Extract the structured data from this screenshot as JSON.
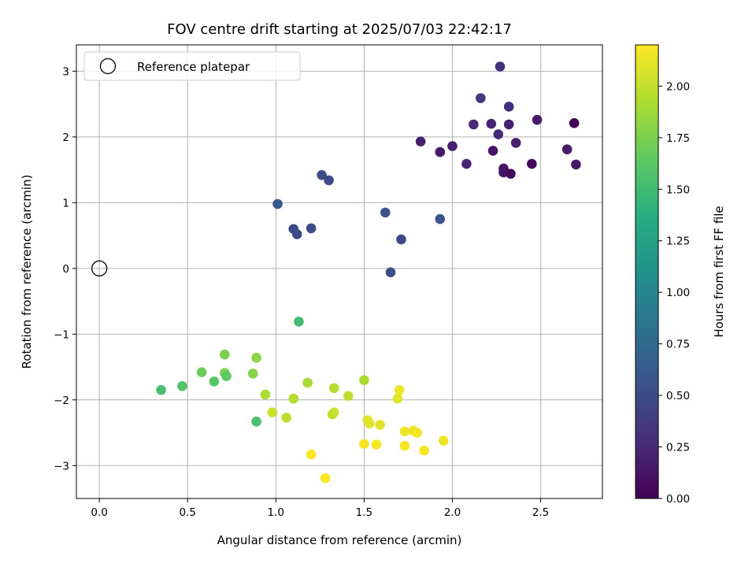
{
  "chart_data": {
    "type": "scatter",
    "title": "FOV centre drift starting at 2025/07/03 22:42:17",
    "xlabel": "Angular distance from reference (arcmin)",
    "ylabel": "Rotation from reference (arcmin)",
    "xlim": [
      -0.13,
      2.85
    ],
    "ylim": [
      -3.5,
      3.4
    ],
    "xticks": [
      0.0,
      0.5,
      1.0,
      1.5,
      2.0,
      2.5
    ],
    "xtick_labels": [
      "0.0",
      "0.5",
      "1.0",
      "1.5",
      "2.0",
      "2.5"
    ],
    "yticks": [
      -3,
      -2,
      -1,
      0,
      1,
      2,
      3
    ],
    "ytick_labels": [
      "−3",
      "−2",
      "−1",
      "0",
      "1",
      "2",
      "3"
    ],
    "grid": true,
    "legend": {
      "position": "top-left",
      "entries": [
        {
          "label": "Reference platepar",
          "marker": "open-circle"
        }
      ]
    },
    "reference_point": {
      "x": 0.0,
      "y": 0.0
    },
    "colorbar": {
      "label": "Hours from first FF file",
      "colormap": "viridis",
      "range": [
        0.0,
        2.2
      ],
      "ticks": [
        0.0,
        0.25,
        0.5,
        0.75,
        1.0,
        1.25,
        1.5,
        1.75,
        2.0
      ],
      "tick_labels": [
        "0.00",
        "0.25",
        "0.50",
        "0.75",
        "1.00",
        "1.25",
        "1.50",
        "1.75",
        "2.00"
      ]
    },
    "points": [
      {
        "x": 2.27,
        "y": 3.07,
        "c": 0.28
      },
      {
        "x": 2.16,
        "y": 2.59,
        "c": 0.35
      },
      {
        "x": 2.32,
        "y": 2.46,
        "c": 0.28
      },
      {
        "x": 2.48,
        "y": 2.26,
        "c": 0.15
      },
      {
        "x": 2.69,
        "y": 2.21,
        "c": 0.02
      },
      {
        "x": 2.12,
        "y": 2.19,
        "c": 0.25
      },
      {
        "x": 2.22,
        "y": 2.2,
        "c": 0.22
      },
      {
        "x": 2.32,
        "y": 2.19,
        "c": 0.2
      },
      {
        "x": 2.26,
        "y": 2.04,
        "c": 0.25
      },
      {
        "x": 1.82,
        "y": 1.93,
        "c": 0.2
      },
      {
        "x": 2.36,
        "y": 1.91,
        "c": 0.18
      },
      {
        "x": 2.0,
        "y": 1.86,
        "c": 0.18
      },
      {
        "x": 2.65,
        "y": 1.81,
        "c": 0.15
      },
      {
        "x": 1.93,
        "y": 1.77,
        "c": 0.15
      },
      {
        "x": 2.23,
        "y": 1.79,
        "c": 0.12
      },
      {
        "x": 2.08,
        "y": 1.59,
        "c": 0.22
      },
      {
        "x": 2.45,
        "y": 1.59,
        "c": 0.05
      },
      {
        "x": 2.7,
        "y": 1.58,
        "c": 0.15
      },
      {
        "x": 2.29,
        "y": 1.52,
        "c": 0.12
      },
      {
        "x": 2.29,
        "y": 1.46,
        "c": 0.12
      },
      {
        "x": 2.33,
        "y": 1.44,
        "c": 0.05
      },
      {
        "x": 1.26,
        "y": 1.42,
        "c": 0.5
      },
      {
        "x": 1.3,
        "y": 1.34,
        "c": 0.48
      },
      {
        "x": 1.01,
        "y": 0.98,
        "c": 0.62
      },
      {
        "x": 1.62,
        "y": 0.85,
        "c": 0.55
      },
      {
        "x": 1.93,
        "y": 0.75,
        "c": 0.55
      },
      {
        "x": 1.1,
        "y": 0.6,
        "c": 0.5
      },
      {
        "x": 1.2,
        "y": 0.61,
        "c": 0.5
      },
      {
        "x": 1.12,
        "y": 0.52,
        "c": 0.5
      },
      {
        "x": 1.71,
        "y": 0.44,
        "c": 0.48
      },
      {
        "x": 1.65,
        "y": -0.06,
        "c": 0.52
      },
      {
        "x": 1.13,
        "y": -0.81,
        "c": 1.52
      },
      {
        "x": 0.71,
        "y": -1.31,
        "c": 1.75
      },
      {
        "x": 0.89,
        "y": -1.36,
        "c": 1.8
      },
      {
        "x": 0.58,
        "y": -1.58,
        "c": 1.7
      },
      {
        "x": 0.71,
        "y": -1.59,
        "c": 1.75
      },
      {
        "x": 0.87,
        "y": -1.6,
        "c": 1.78
      },
      {
        "x": 0.72,
        "y": -1.64,
        "c": 1.65
      },
      {
        "x": 0.65,
        "y": -1.72,
        "c": 1.6
      },
      {
        "x": 1.5,
        "y": -1.7,
        "c": 1.92
      },
      {
        "x": 1.18,
        "y": -1.74,
        "c": 1.9
      },
      {
        "x": 0.47,
        "y": -1.79,
        "c": 1.58
      },
      {
        "x": 1.33,
        "y": -1.82,
        "c": 1.95
      },
      {
        "x": 0.35,
        "y": -1.85,
        "c": 1.55
      },
      {
        "x": 1.7,
        "y": -1.85,
        "c": 2.15
      },
      {
        "x": 0.94,
        "y": -1.92,
        "c": 1.92
      },
      {
        "x": 1.41,
        "y": -1.94,
        "c": 1.98
      },
      {
        "x": 1.1,
        "y": -1.98,
        "c": 1.95
      },
      {
        "x": 1.69,
        "y": -1.98,
        "c": 2.1
      },
      {
        "x": 0.98,
        "y": -2.19,
        "c": 2.02
      },
      {
        "x": 1.33,
        "y": -2.19,
        "c": 2.05
      },
      {
        "x": 1.32,
        "y": -2.22,
        "c": 2.0
      },
      {
        "x": 1.06,
        "y": -2.27,
        "c": 1.98
      },
      {
        "x": 1.52,
        "y": -2.31,
        "c": 2.1
      },
      {
        "x": 0.89,
        "y": -2.33,
        "c": 1.55
      },
      {
        "x": 1.53,
        "y": -2.36,
        "c": 2.1
      },
      {
        "x": 1.59,
        "y": -2.38,
        "c": 2.1
      },
      {
        "x": 1.73,
        "y": -2.48,
        "c": 2.15
      },
      {
        "x": 1.78,
        "y": -2.47,
        "c": 2.15
      },
      {
        "x": 1.8,
        "y": -2.5,
        "c": 2.18
      },
      {
        "x": 1.95,
        "y": -2.62,
        "c": 2.15
      },
      {
        "x": 1.5,
        "y": -2.67,
        "c": 2.18
      },
      {
        "x": 1.57,
        "y": -2.68,
        "c": 2.18
      },
      {
        "x": 1.73,
        "y": -2.7,
        "c": 2.18
      },
      {
        "x": 1.84,
        "y": -2.77,
        "c": 2.18
      },
      {
        "x": 1.2,
        "y": -2.83,
        "c": 2.2
      },
      {
        "x": 1.28,
        "y": -3.19,
        "c": 2.2
      }
    ]
  }
}
